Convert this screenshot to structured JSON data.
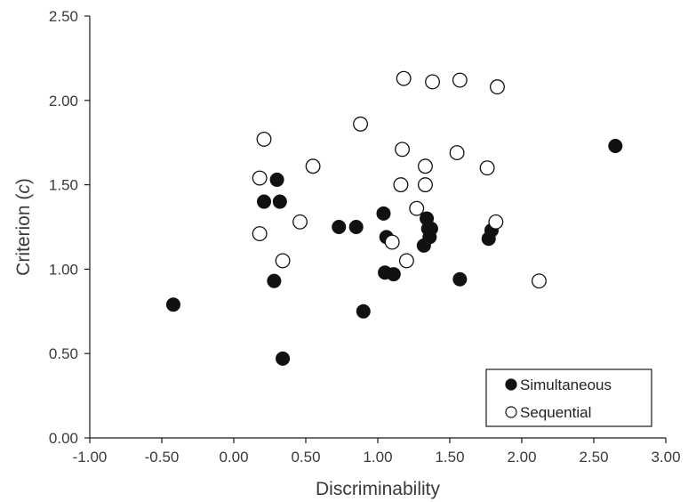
{
  "chart_data": {
    "type": "scatter",
    "title": "",
    "xlabel": "Discriminability",
    "ylabel_parts": [
      "Criterion (",
      "c",
      ")"
    ],
    "xlim": [
      -1.0,
      3.0
    ],
    "ylim": [
      0.0,
      2.5
    ],
    "x_ticks": [
      "-1.00",
      "-0.50",
      "0.00",
      "0.50",
      "1.00",
      "1.50",
      "2.00",
      "2.50",
      "3.00"
    ],
    "y_ticks": [
      "0.00",
      "0.50",
      "1.00",
      "1.50",
      "2.00",
      "2.50"
    ],
    "grid": false,
    "legend_position": "bottom-right",
    "colors": {
      "axis": "#1a1a1a",
      "marker": "#111111",
      "text": "#3a3a3a"
    },
    "series": [
      {
        "name": "Simultaneous",
        "marker": "filled-circle",
        "points": [
          [
            -0.42,
            0.79
          ],
          [
            0.21,
            1.4
          ],
          [
            0.28,
            0.93
          ],
          [
            0.3,
            1.53
          ],
          [
            0.32,
            1.4
          ],
          [
            0.34,
            0.47
          ],
          [
            0.73,
            1.25
          ],
          [
            0.85,
            1.25
          ],
          [
            0.9,
            0.75
          ],
          [
            1.04,
            1.33
          ],
          [
            1.05,
            0.98
          ],
          [
            1.06,
            1.19
          ],
          [
            1.11,
            0.97
          ],
          [
            1.32,
            1.14
          ],
          [
            1.34,
            1.3
          ],
          [
            1.35,
            1.24
          ],
          [
            1.36,
            1.19
          ],
          [
            1.37,
            1.24
          ],
          [
            1.57,
            0.94
          ],
          [
            1.77,
            1.18
          ],
          [
            1.79,
            1.23
          ],
          [
            2.65,
            1.73
          ]
        ]
      },
      {
        "name": "Sequential",
        "marker": "open-circle",
        "points": [
          [
            0.18,
            1.54
          ],
          [
            0.18,
            1.21
          ],
          [
            0.21,
            1.77
          ],
          [
            0.34,
            1.05
          ],
          [
            0.46,
            1.28
          ],
          [
            0.55,
            1.61
          ],
          [
            0.88,
            1.86
          ],
          [
            1.1,
            1.16
          ],
          [
            1.16,
            1.5
          ],
          [
            1.17,
            1.71
          ],
          [
            1.18,
            2.13
          ],
          [
            1.2,
            1.05
          ],
          [
            1.27,
            1.36
          ],
          [
            1.33,
            1.5
          ],
          [
            1.33,
            1.61
          ],
          [
            1.38,
            2.11
          ],
          [
            1.55,
            1.69
          ],
          [
            1.57,
            2.12
          ],
          [
            1.76,
            1.6
          ],
          [
            1.82,
            1.28
          ],
          [
            1.83,
            2.08
          ],
          [
            2.12,
            0.93
          ]
        ]
      }
    ]
  }
}
